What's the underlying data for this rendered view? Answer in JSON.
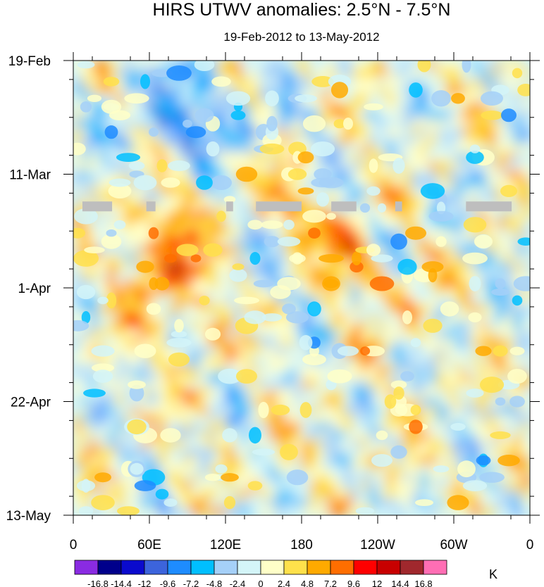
{
  "chart_data": {
    "type": "heatmap",
    "title": "HIRS UTWV anomalies: 2.5°N - 7.5°N",
    "subtitle": "19-Feb-2012 to 13-May-2012",
    "x_ticks": [
      "0",
      "60E",
      "120E",
      "180",
      "120W",
      "60W",
      "0"
    ],
    "x_range_deg_east": [
      0,
      360
    ],
    "y_ticks": [
      "19-Feb",
      "11-Mar",
      "1-Apr",
      "22-Apr",
      "13-May"
    ],
    "y_range_days": [
      0,
      84
    ],
    "colorbar": {
      "unit": "K",
      "levels": [
        "-16.8",
        "-14.4",
        "-12",
        "-9.6",
        "-7.2",
        "-4.8",
        "-2.4",
        "0",
        "2.4",
        "4.8",
        "7.2",
        "9.6",
        "12",
        "14.4",
        "16.8"
      ],
      "colors": [
        "#8a2be2",
        "#00008b",
        "#0a0acd",
        "#3c64dc",
        "#1e8cff",
        "#00bfff",
        "#a5d0f8",
        "#d4f5f8",
        "#ffffc8",
        "#ffe14b",
        "#ffaa00",
        "#ff6e00",
        "#ff0000",
        "#c80000",
        "#a0282d",
        "#ff6eb4"
      ]
    },
    "missing_color": "#bebebe"
  }
}
